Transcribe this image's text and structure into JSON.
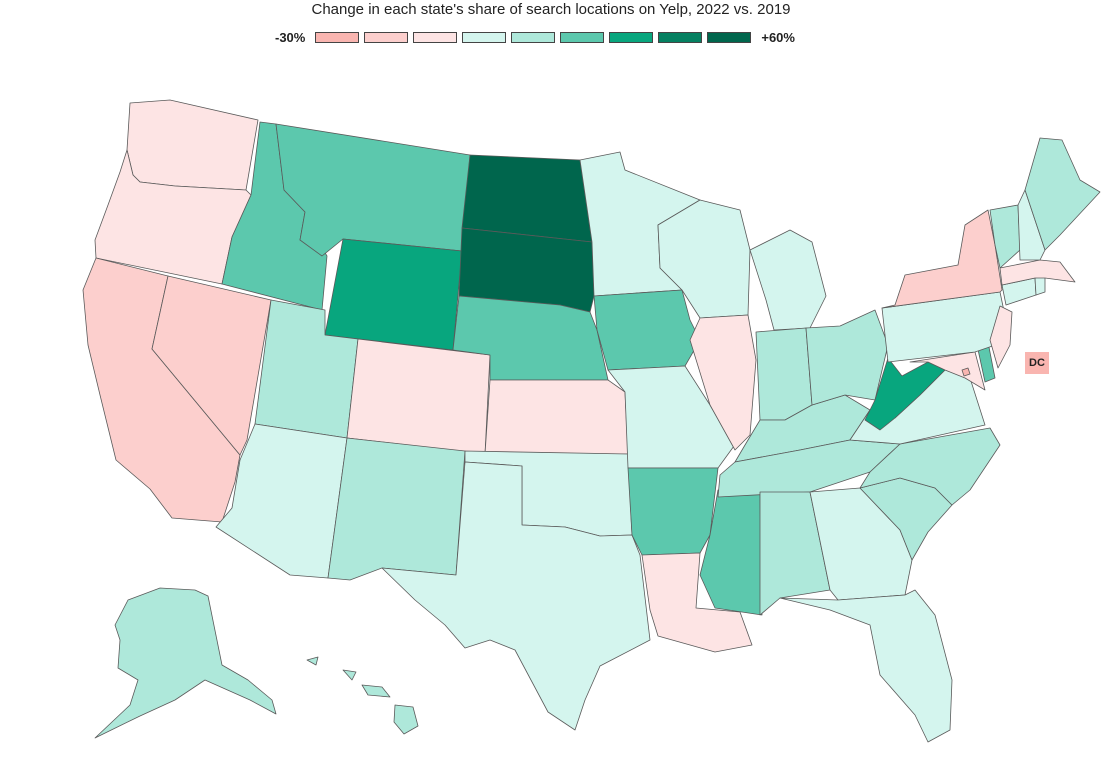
{
  "title": "Change in each state's share of search locations on Yelp, 2022 vs. 2019",
  "legend": {
    "min_label": "-30%",
    "max_label": "+60%",
    "colors": [
      "#f9b5b0",
      "#fccfcd",
      "#fde4e4",
      "#d4f5ee",
      "#aee8da",
      "#5cc8ad",
      "#08a67e",
      "#058061",
      "#00664d"
    ]
  },
  "dc_label": "DC",
  "states": {
    "WA": 2,
    "OR": 2,
    "CA": 1,
    "NV": 1,
    "ID": 5,
    "MT": 5,
    "WY": 6,
    "UT": 4,
    "CO": 2,
    "AZ": 3,
    "NM": 4,
    "ND": 8,
    "SD": 8,
    "NE": 5,
    "KS": 2,
    "OK": 3,
    "TX": 3,
    "MN": 3,
    "IA": 5,
    "MO": 3,
    "AR": 5,
    "LA": 2,
    "WI": 3,
    "IL": 2,
    "MS": 5,
    "MI": 3,
    "IN": 4,
    "KY": 4,
    "TN": 4,
    "AL": 4,
    "OH": 4,
    "GA": 3,
    "FL": 3,
    "SC": 4,
    "NC": 4,
    "VA": 3,
    "WV": 6,
    "MD": 2,
    "DE": 5,
    "PA": 3,
    "NJ": 2,
    "NY": 1,
    "CT": 3,
    "RI": 3,
    "MA": 2,
    "VT": 4,
    "NH": 3,
    "ME": 4,
    "AK": 4,
    "HI": 4,
    "DC": 0
  }
}
